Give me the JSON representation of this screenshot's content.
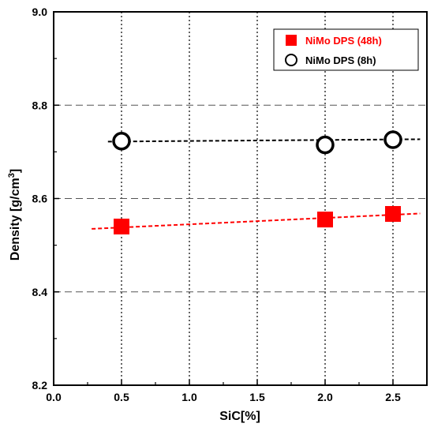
{
  "chart_data": {
    "type": "scatter",
    "title": "",
    "xlabel": "SiC[%]",
    "ylabel_main": "Density [g/cm",
    "ylabel_sup": "3",
    "ylabel_end": "]",
    "xlim": [
      0.0,
      2.75
    ],
    "ylim": [
      8.2,
      9.0
    ],
    "xticks": [
      "0.0",
      "0.5",
      "1.0",
      "1.5",
      "2.0",
      "2.5"
    ],
    "yticks": [
      "8.2",
      "8.4",
      "8.6",
      "8.8",
      "9.0"
    ],
    "grid": true,
    "legend_position": "top-right",
    "series": [
      {
        "name": "NiMo DPS (48h)",
        "marker": "filled-square",
        "color": "#ff0000",
        "x": [
          0.5,
          2.0,
          2.5
        ],
        "y": [
          8.54,
          8.555,
          8.567
        ],
        "trend": {
          "x": [
            0.28,
            2.7
          ],
          "y": [
            8.535,
            8.568
          ]
        }
      },
      {
        "name": "NiMo DPS (8h)",
        "marker": "open-circle",
        "color": "#000000",
        "x": [
          0.5,
          2.0,
          2.5
        ],
        "y": [
          8.723,
          8.715,
          8.726
        ],
        "trend": {
          "x": [
            0.4,
            2.7
          ],
          "y": [
            8.722,
            8.727
          ]
        }
      }
    ]
  }
}
